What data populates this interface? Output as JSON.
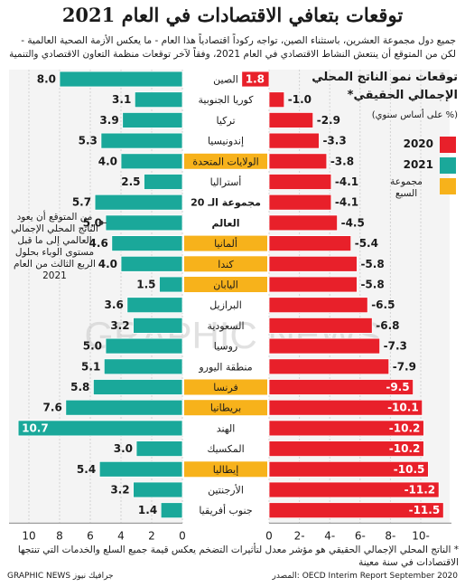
{
  "title": "توقعات بتعافي الاقتصادات في العام 2021",
  "intro": [
    "جميع دول مجموعة العشرين، باستثناء الصين، تواجه ركوداً اقتصادياً هذا العام - ما يعكس الأزمة الصحية العالمية -",
    "لكن من المتوقع أن ينتعش النشاط الاقتصادي في العام 2021، وفقاً لآخر توقعات منظمة التعاون الاقتصادي والتنمية"
  ],
  "side_title": [
    "توقعات نمو الناتج المحلي",
    "الإجمالي الحقيقي*",
    "(% على أساس سنوي)"
  ],
  "legend": [
    {
      "label": "2020",
      "color": "#e8202a"
    },
    {
      "label": "2021",
      "color": "#1aa89a"
    },
    {
      "label": "مجموعة السبع",
      "color": "#f7b21b"
    }
  ],
  "world_note": "من المتوقع أن يعود الناتج المحلي الإجمالي العالمي إلى ما قبل مستوى الوباء بحلول الربع الثالث من العام 2021",
  "footnote": "* الناتج المحلي الإجمالي الحقيقي هو مؤشر معدل لتأثيرات التضخم يعكس قيمة جميع السلع والخدمات التي تنتجها الاقتصادات في سنة معينة",
  "source": "المصدر: OECD Interim Report September 2020",
  "credit": "GRAPHIC NEWS جرافيك نيوز",
  "watermark": "GRAPHIC NEWS",
  "chart_data": {
    "type": "bar",
    "categories": [
      "الصين",
      "كوريا الجنوبية",
      "تركيا",
      "إندونيسيا",
      "الولايات المتحدة",
      "أستراليا",
      "مجموعة الـ 20",
      "العالم",
      "ألمانيا",
      "كندا",
      "اليابان",
      "البرازيل",
      "السعودية",
      "روسيا",
      "منطقة اليورو",
      "فرنسا",
      "بريطانيا",
      "الهند",
      "المكسيك",
      "إيطاليا",
      "الأرجنتين",
      "جنوب أفريقيا"
    ],
    "g7": [
      false,
      false,
      false,
      false,
      true,
      false,
      false,
      false,
      true,
      true,
      true,
      false,
      false,
      false,
      false,
      true,
      true,
      false,
      false,
      true,
      false,
      false
    ],
    "bold": [
      false,
      false,
      false,
      false,
      false,
      false,
      true,
      true,
      false,
      false,
      false,
      false,
      false,
      false,
      false,
      false,
      false,
      false,
      false,
      false,
      false,
      false
    ],
    "series": [
      {
        "name": "2020",
        "values": [
          1.8,
          -1.0,
          -2.9,
          -3.3,
          -3.8,
          -4.1,
          -4.1,
          -4.5,
          -5.4,
          -5.8,
          -5.8,
          -6.5,
          -6.8,
          -7.3,
          -7.9,
          -9.5,
          -10.1,
          -10.2,
          -10.2,
          -10.5,
          -11.2,
          -11.5
        ]
      },
      {
        "name": "2021",
        "values": [
          8.0,
          3.1,
          3.9,
          5.3,
          4.0,
          2.5,
          5.7,
          5.0,
          4.6,
          4.0,
          1.5,
          3.6,
          3.2,
          5.0,
          5.1,
          5.8,
          7.6,
          10.7,
          3.0,
          5.4,
          3.2,
          1.4
        ]
      }
    ],
    "labels_2020": [
      "1.8",
      "-1.0",
      "-2.9",
      "-3.3",
      "-3.8",
      "-4.1",
      "-4.1",
      "-4.5",
      "-5.4",
      "-5.8",
      "-5.8",
      "-6.5",
      "-6.8",
      "-7.3",
      "-7.9",
      "-9.5",
      "-10.1",
      "-10.2",
      "-10.2",
      "-10.5",
      "-11.2",
      "-11.5"
    ],
    "labels_2021": [
      "8.0",
      "3.1",
      "3.9",
      "5.3",
      "4.0",
      "2.5",
      "5.7",
      "5.0",
      "4.6",
      "4.0",
      "1.5",
      "3.6",
      "3.2",
      "5.0",
      "5.1",
      "5.8",
      "7.6",
      "10.7",
      "3.0",
      "5.4",
      "3.2",
      "1.4"
    ],
    "left_axis_ticks": [
      "10",
      "8",
      "6",
      "4",
      "2",
      "0"
    ],
    "right_axis_ticks": [
      "0",
      "2-",
      "4-",
      "6-",
      "8-",
      "10-"
    ],
    "left_axis_range": [
      0,
      11
    ],
    "right_axis_range": [
      0,
      -11.5
    ]
  }
}
